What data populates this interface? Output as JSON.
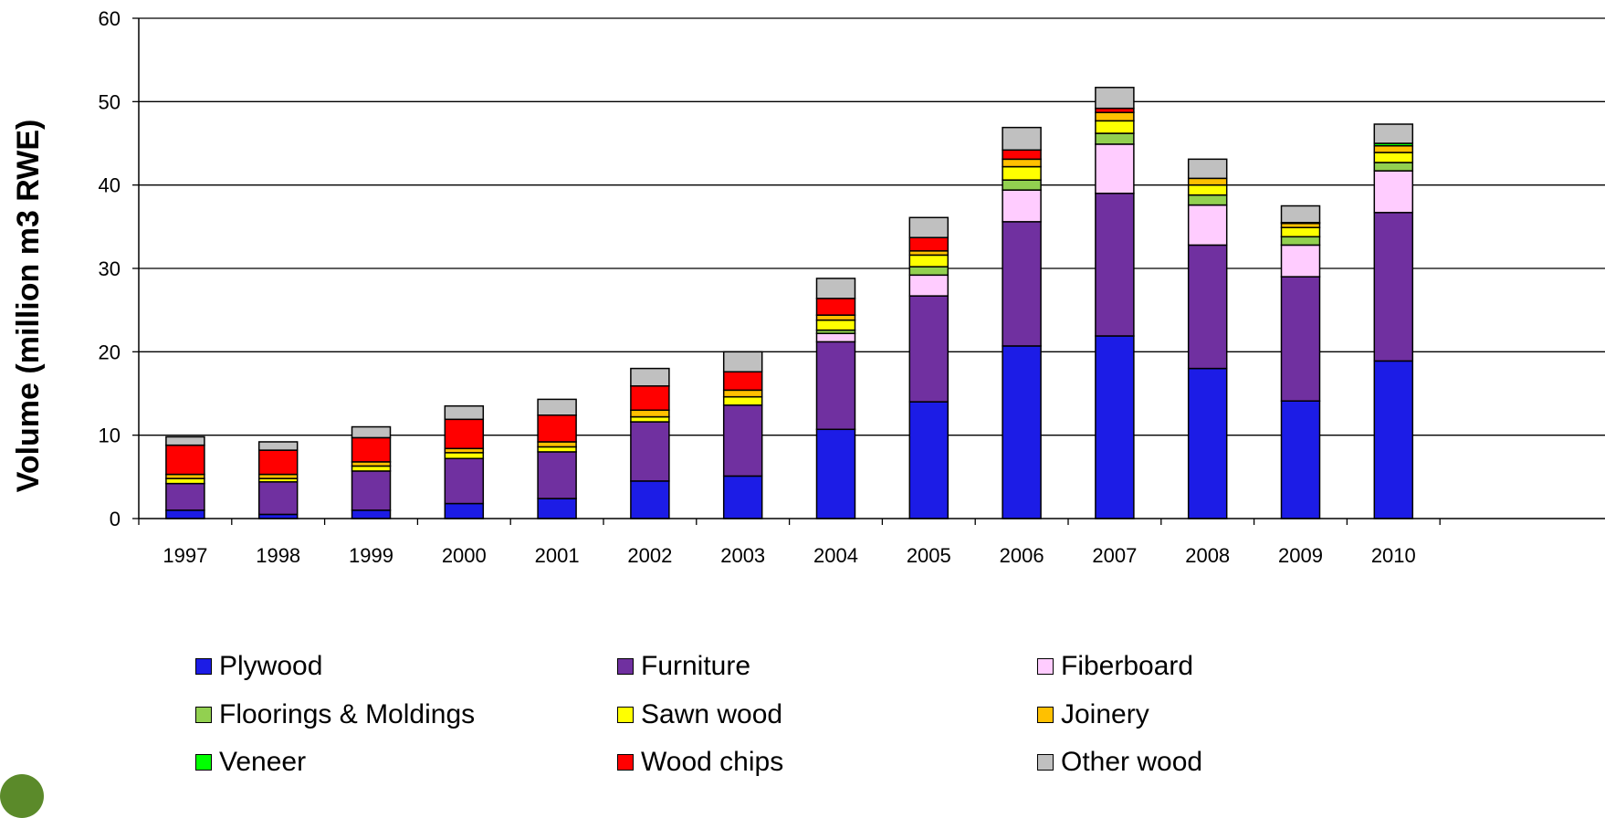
{
  "chart_data": {
    "type": "bar",
    "stacked": true,
    "ylabel": "Volume (million m3 RWE)",
    "xlabel": "",
    "ylim": [
      0,
      60
    ],
    "yticks": [
      0,
      10,
      20,
      30,
      40,
      50,
      60
    ],
    "grid": true,
    "legend_position": "bottom",
    "categories": [
      "1997",
      "1998",
      "1999",
      "2000",
      "2001",
      "2002",
      "2003",
      "2004",
      "2005",
      "2006",
      "2007",
      "2008",
      "2009",
      "2010"
    ],
    "series": [
      {
        "name": "Plywood",
        "color": "#1c1ce6",
        "values": [
          1.0,
          0.5,
          1.0,
          1.8,
          2.4,
          4.5,
          5.1,
          10.7,
          14.0,
          20.7,
          21.9,
          18.0,
          14.1,
          18.9
        ]
      },
      {
        "name": "Furniture",
        "color": "#7030a0",
        "values": [
          3.2,
          3.9,
          4.7,
          5.4,
          5.6,
          7.1,
          8.5,
          10.5,
          12.7,
          14.9,
          17.1,
          14.8,
          14.9,
          17.8
        ]
      },
      {
        "name": "Fiberboard",
        "color": "#ffccff",
        "values": [
          0.0,
          0.0,
          0.0,
          0.0,
          0.0,
          0.0,
          0.0,
          1.0,
          2.5,
          3.8,
          5.9,
          4.8,
          3.8,
          5.0
        ]
      },
      {
        "name": "Floorings & Moldings",
        "color": "#92d050",
        "values": [
          0.0,
          0.0,
          0.0,
          0.0,
          0.0,
          0.0,
          0.0,
          0.4,
          1.0,
          1.2,
          1.3,
          1.2,
          1.0,
          1.0
        ]
      },
      {
        "name": "Sawn wood",
        "color": "#ffff00",
        "values": [
          0.6,
          0.4,
          0.6,
          0.7,
          0.6,
          0.6,
          1.0,
          1.2,
          1.4,
          1.6,
          1.5,
          1.2,
          1.1,
          1.2
        ]
      },
      {
        "name": "Joinery",
        "color": "#ffc000",
        "values": [
          0.5,
          0.5,
          0.5,
          0.5,
          0.6,
          0.8,
          0.8,
          0.6,
          0.5,
          0.9,
          1.0,
          0.8,
          0.5,
          0.8
        ]
      },
      {
        "name": "Veneer",
        "color": "#00ff00",
        "values": [
          0.0,
          0.0,
          0.0,
          0.0,
          0.0,
          0.0,
          0.0,
          0.0,
          0.0,
          0.0,
          0.0,
          0.0,
          0.1,
          0.3
        ]
      },
      {
        "name": "Wood chips",
        "color": "#ff0000",
        "values": [
          3.5,
          2.9,
          2.9,
          3.5,
          3.2,
          2.9,
          2.2,
          2.0,
          1.6,
          1.1,
          0.5,
          0.0,
          0.0,
          0.0
        ]
      },
      {
        "name": "Other wood",
        "color": "#c0c0c0",
        "values": [
          1.0,
          1.0,
          1.3,
          1.6,
          1.9,
          2.1,
          2.4,
          2.4,
          2.4,
          2.7,
          2.5,
          2.3,
          2.0,
          2.3
        ]
      }
    ]
  }
}
